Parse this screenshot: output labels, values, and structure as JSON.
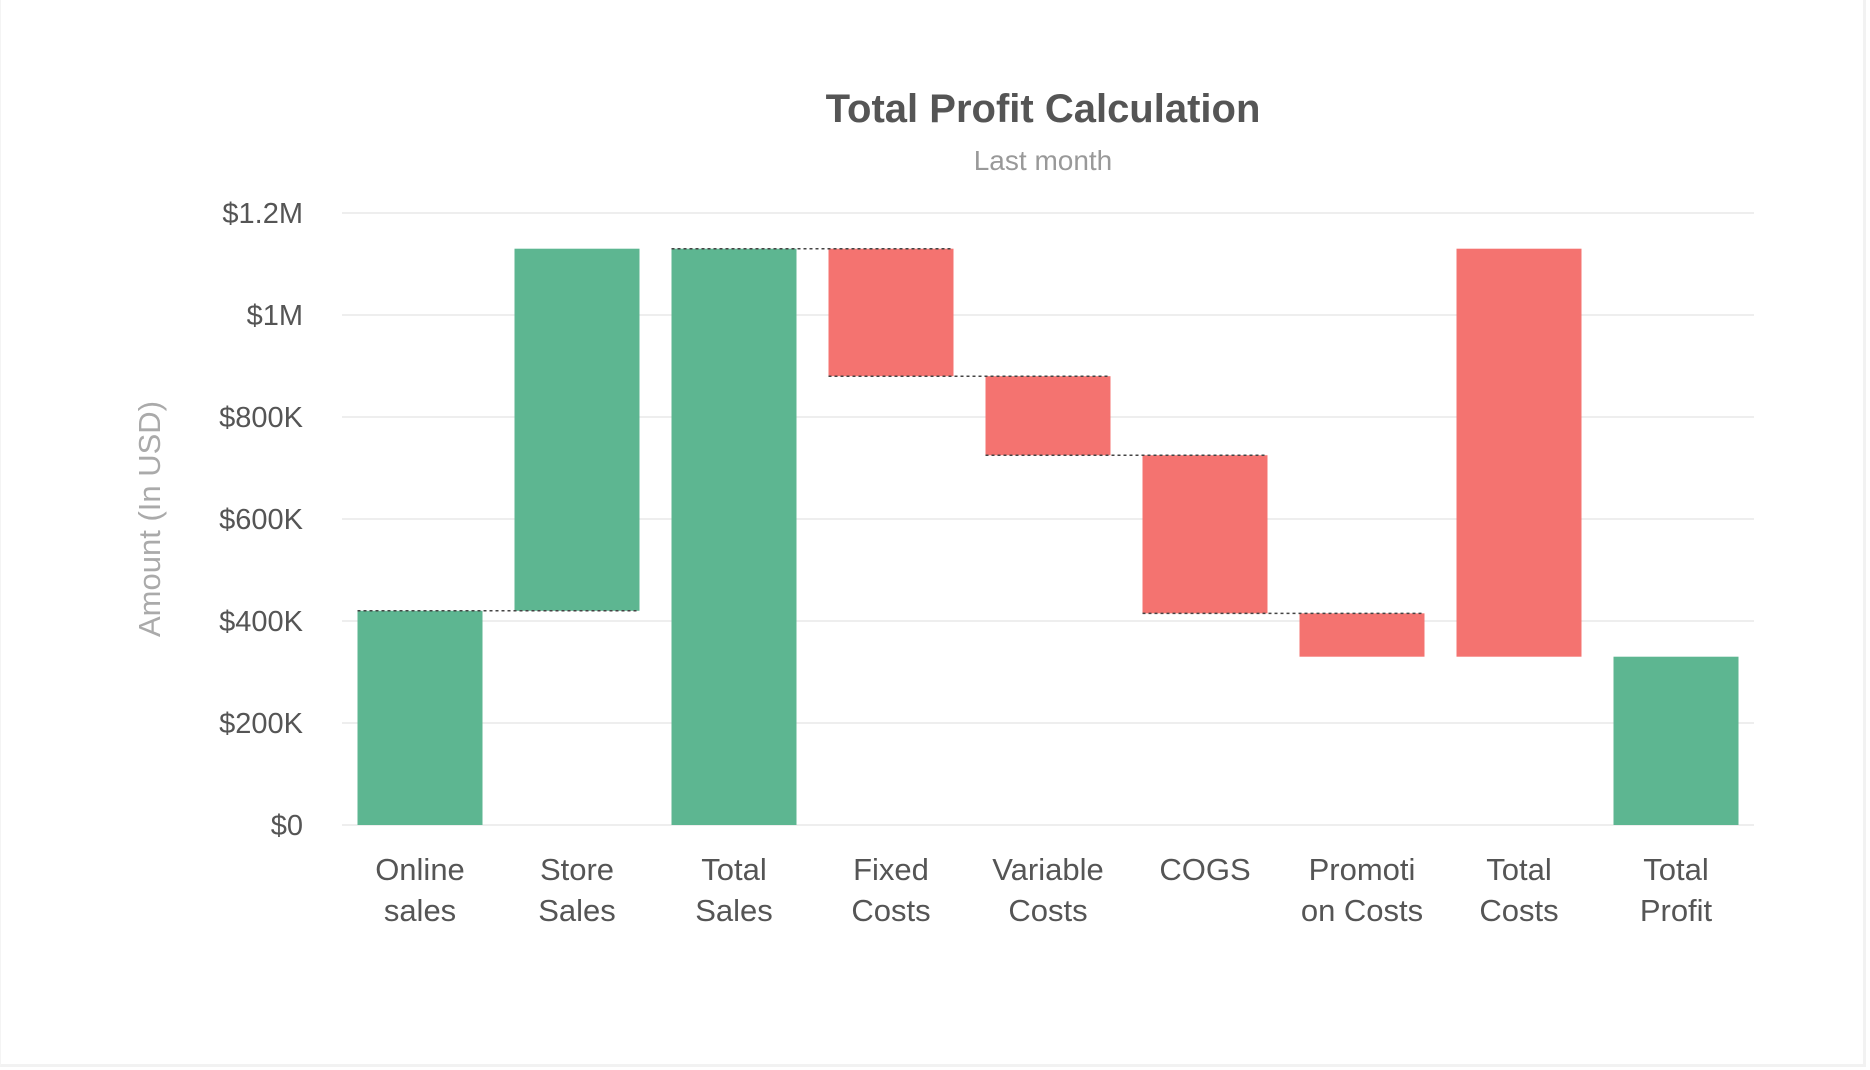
{
  "chart_data": {
    "type": "waterfall",
    "title": "Total Profit Calculation",
    "subtitle": "Last month",
    "ylabel": "Amount (In USD)",
    "ylim": [
      0,
      1200000
    ],
    "yticks": [
      0,
      200000,
      400000,
      600000,
      800000,
      1000000,
      1200000
    ],
    "ytick_labels": [
      "$0",
      "$200K",
      "$400K",
      "$600K",
      "$800K",
      "$1M",
      "$1.2M"
    ],
    "grid": true,
    "colors": {
      "increase": "#5db691",
      "decrease": "#f47370",
      "connector": "#444444",
      "grid": "#eeeeee"
    },
    "bars": [
      {
        "label": [
          "Online",
          "sales"
        ],
        "start": 0,
        "end": 420000,
        "kind": "increase"
      },
      {
        "label": [
          "Store",
          "Sales"
        ],
        "start": 420000,
        "end": 1130000,
        "kind": "increase"
      },
      {
        "label": [
          "Total",
          "Sales"
        ],
        "start": 0,
        "end": 1130000,
        "kind": "total-increase"
      },
      {
        "label": [
          "Fixed",
          "Costs"
        ],
        "start": 1130000,
        "end": 880000,
        "kind": "decrease"
      },
      {
        "label": [
          "Variable",
          "Costs"
        ],
        "start": 880000,
        "end": 725000,
        "kind": "decrease"
      },
      {
        "label": [
          "COGS",
          ""
        ],
        "start": 725000,
        "end": 415000,
        "kind": "decrease"
      },
      {
        "label": [
          "Promoti",
          "on Costs"
        ],
        "start": 415000,
        "end": 330000,
        "kind": "decrease"
      },
      {
        "label": [
          "Total",
          "Costs"
        ],
        "start": 1130000,
        "end": 330000,
        "kind": "total-decrease"
      },
      {
        "label": [
          "Total",
          "Profit"
        ],
        "start": 0,
        "end": 330000,
        "kind": "total-increase"
      }
    ],
    "connectors": [
      [
        0,
        1
      ],
      [
        2,
        3
      ],
      [
        3,
        4
      ],
      [
        4,
        5
      ],
      [
        5,
        6
      ]
    ]
  }
}
